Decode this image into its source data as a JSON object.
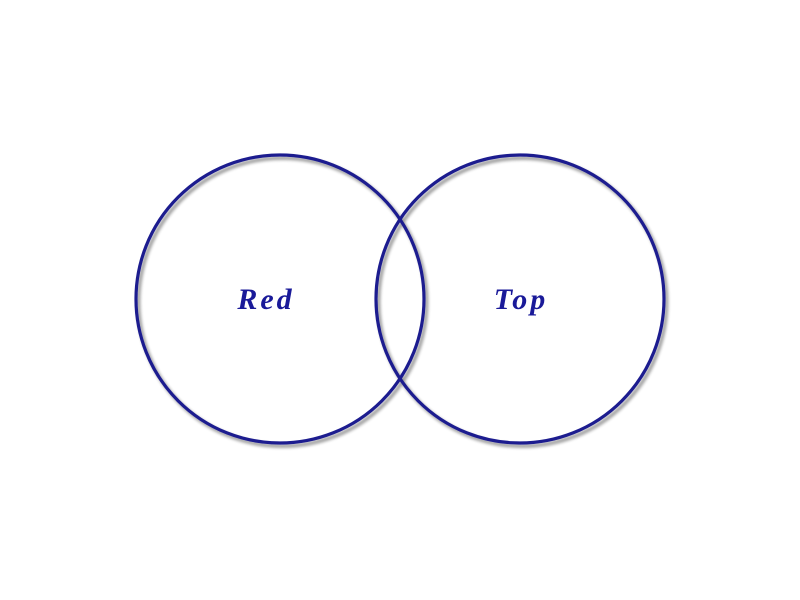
{
  "diagram": {
    "type": "venn",
    "circles": [
      {
        "label": "Red"
      },
      {
        "label": "Top"
      }
    ]
  },
  "colors": {
    "stroke": "#1f1f8f",
    "label": "#1a1a99",
    "shadow": "#9a9a9a",
    "background": "#ffffff"
  }
}
